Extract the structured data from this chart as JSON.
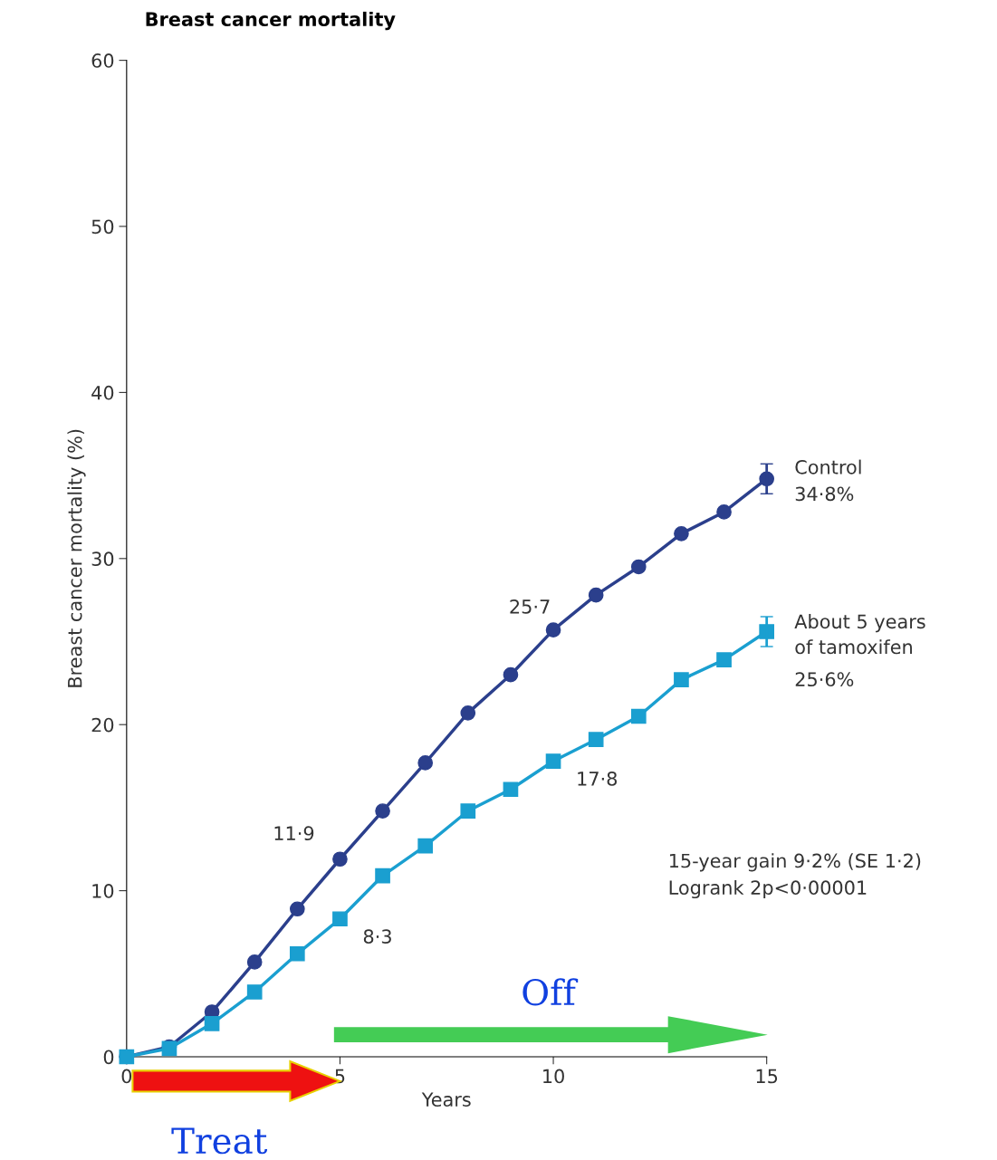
{
  "chart_data": {
    "type": "line",
    "title": "Breast cancer mortality",
    "xlabel": "Years",
    "ylabel": "Breast cancer mortality (%)",
    "x": [
      0,
      1,
      2,
      3,
      4,
      5,
      6,
      7,
      8,
      9,
      10,
      11,
      12,
      13,
      14,
      15
    ],
    "series": [
      {
        "name": "Control",
        "color": "#2b3f8c",
        "marker": "circle",
        "values": [
          0,
          0.6,
          2.7,
          5.7,
          8.9,
          11.9,
          14.8,
          17.7,
          20.7,
          23.0,
          25.7,
          27.8,
          29.5,
          31.5,
          32.8,
          34.8
        ],
        "errors": [
          null,
          null,
          null,
          null,
          null,
          null,
          null,
          null,
          null,
          null,
          null,
          null,
          null,
          null,
          null,
          0.9
        ]
      },
      {
        "name": "About 5 years\nof tamoxifen",
        "color": "#1a9fd0",
        "marker": "square",
        "values": [
          0,
          0.5,
          2.0,
          3.9,
          6.2,
          8.3,
          10.9,
          12.7,
          14.8,
          16.1,
          17.8,
          19.1,
          20.5,
          22.7,
          23.9,
          25.6
        ],
        "errors": [
          null,
          null,
          null,
          null,
          null,
          null,
          null,
          null,
          null,
          null,
          null,
          null,
          null,
          null,
          null,
          0.9
        ]
      }
    ],
    "xlim": [
      0,
      15
    ],
    "ylim": [
      0,
      60
    ],
    "xticks": [
      0,
      5,
      10,
      15
    ],
    "yticks": [
      0,
      10,
      20,
      30,
      40,
      50,
      60
    ],
    "grid": false,
    "legend": false,
    "annotations": [
      {
        "text": "11·9",
        "x": 5,
        "y": 11.9
      },
      {
        "text": "25·7",
        "x": 10,
        "y": 25.7
      },
      {
        "text": "34·8%",
        "x": 15,
        "y": 34.8
      },
      {
        "text": "8·3",
        "x": 5,
        "y": 8.3
      },
      {
        "text": "17·8",
        "x": 10,
        "y": 17.8
      },
      {
        "text": "25·6%",
        "x": 15,
        "y": 25.6
      },
      "15-year gain 9·2% (SE 1·2)\nLogrank 2p<0·00001",
      "Treat",
      "Off"
    ]
  }
}
